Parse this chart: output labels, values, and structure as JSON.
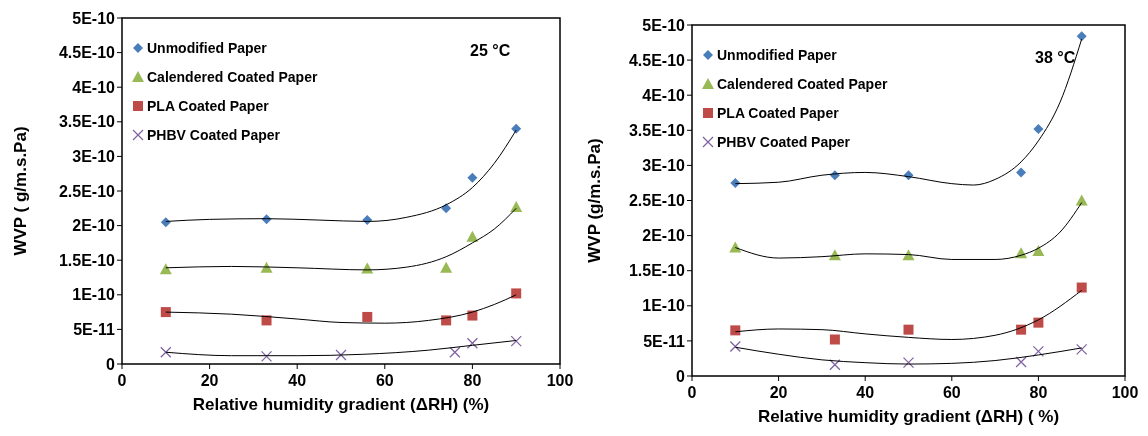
{
  "chart_data": [
    {
      "type": "scatter",
      "xlabel": "Relative humidity gradient (ΔRH) (%)",
      "ylabel": "WVP ( g/m.s.Pa)",
      "annotations": [
        "25 °C"
      ],
      "xlim": [
        0,
        100
      ],
      "xticks": [
        0,
        20,
        40,
        60,
        80,
        100
      ],
      "ylim": [
        0,
        5e-10
      ],
      "yticks": [
        0,
        {
          "value": 5e-11,
          "label": "5E-11"
        },
        {
          "value": 1e-10,
          "label": "1E-10"
        },
        {
          "value": 1.5e-10,
          "label": "1.5E-10"
        },
        {
          "value": 2e-10,
          "label": "2E-10"
        },
        {
          "value": 2.5e-10,
          "label": "2.5E-10"
        },
        {
          "value": 3e-10,
          "label": "3E-10"
        },
        {
          "value": 3.5e-10,
          "label": "3.5E-10"
        },
        {
          "value": 4e-10,
          "label": "4E-10"
        },
        {
          "value": 4.5e-10,
          "label": "4.5E-10"
        },
        {
          "value": 5e-10,
          "label": "5E-10"
        }
      ],
      "grid": false,
      "legend": "top left",
      "series": [
        {
          "name": "Unmodified Paper",
          "type": "scatter",
          "marker": "diamond",
          "color": "#4a7ebb",
          "x": [
            10,
            33,
            56,
            74,
            80,
            90
          ],
          "values": [
            2.05e-10,
            2.09e-10,
            2.08e-10,
            2.25e-10,
            2.69e-10,
            3.4e-10
          ]
        },
        {
          "name": "Calendered Coated Paper",
          "type": "scatter",
          "marker": "triangle",
          "color": "#98b954",
          "x": [
            10,
            33,
            56,
            74,
            80,
            90
          ],
          "values": [
            1.37e-10,
            1.39e-10,
            1.38e-10,
            1.39e-10,
            1.84e-10,
            2.27e-10
          ]
        },
        {
          "name": "PLA Coated Paper",
          "type": "scatter",
          "marker": "square",
          "color": "#be4b48",
          "x": [
            10,
            33,
            56,
            74,
            80,
            90
          ],
          "values": [
            7.5e-11,
            6.3e-11,
            6.8e-11,
            6.3e-11,
            7e-11,
            1.02e-10
          ]
        },
        {
          "name": "PHBV Coated Paper",
          "type": "scatter",
          "marker": "cross",
          "color": "#7d60a0",
          "x": [
            10,
            33,
            50,
            76,
            80,
            90
          ],
          "values": [
            1.7e-11,
            1.1e-11,
            1.3e-11,
            1.7e-11,
            3e-11,
            3.3e-11
          ]
        },
        {
          "type": "line",
          "marker": "none",
          "color": "#000000",
          "x": [
            10,
            20,
            33,
            45,
            56,
            65,
            74,
            80,
            85,
            90
          ],
          "values": [
            2.06e-10,
            2.09e-10,
            2.1e-10,
            2.08e-10,
            2.06e-10,
            2.12e-10,
            2.3e-10,
            2.55e-10,
            2.9e-10,
            3.38e-10
          ]
        },
        {
          "type": "line",
          "marker": "none",
          "color": "#000000",
          "x": [
            10,
            25,
            40,
            56,
            65,
            74,
            80,
            85,
            90
          ],
          "values": [
            1.39e-10,
            1.41e-10,
            1.39e-10,
            1.36e-10,
            1.4e-10,
            1.55e-10,
            1.75e-10,
            1.95e-10,
            2.25e-10
          ]
        },
        {
          "type": "line",
          "marker": "none",
          "color": "#000000",
          "x": [
            10,
            25,
            40,
            50,
            60,
            70,
            80,
            85,
            90
          ],
          "values": [
            7.5e-11,
            7.2e-11,
            6.5e-11,
            6e-11,
            5.9e-11,
            6.3e-11,
            7.5e-11,
            8.6e-11,
            1e-10
          ]
        },
        {
          "type": "line",
          "marker": "none",
          "color": "#000000",
          "x": [
            10,
            25,
            40,
            55,
            70,
            80,
            90
          ],
          "values": [
            1.7e-11,
            1.2e-11,
            1.2e-11,
            1.4e-11,
            2e-11,
            2.7e-11,
            3.4e-11
          ]
        }
      ]
    },
    {
      "type": "scatter",
      "xlabel": "Relative humidity gradient (ΔRH) ( %)",
      "ylabel": "WVP  (g/m.s.Pa)",
      "annotations": [
        "38 °C"
      ],
      "xlim": [
        0,
        100
      ],
      "xticks": [
        0,
        20,
        40,
        60,
        80,
        100
      ],
      "ylim": [
        0,
        5e-10
      ],
      "yticks": [
        0,
        {
          "value": 5e-11,
          "label": "5E-11"
        },
        {
          "value": 1e-10,
          "label": "1E-10"
        },
        {
          "value": 1.5e-10,
          "label": "1.5E-10"
        },
        {
          "value": 2e-10,
          "label": "2E-10"
        },
        {
          "value": 2.5e-10,
          "label": "2.5E-10"
        },
        {
          "value": 3e-10,
          "label": "3E-10"
        },
        {
          "value": 3.5e-10,
          "label": "3.5E-10"
        },
        {
          "value": 4e-10,
          "label": "4E-10"
        },
        {
          "value": 4.5e-10,
          "label": "4.5E-10"
        },
        {
          "value": 5e-10,
          "label": "5E-10"
        }
      ],
      "grid": false,
      "legend": "top left",
      "series": [
        {
          "name": "Unmodified Paper",
          "type": "scatter",
          "marker": "diamond",
          "color": "#4a7ebb",
          "x": [
            10,
            33,
            50,
            76,
            80,
            90
          ],
          "values": [
            2.75e-10,
            2.86e-10,
            2.86e-10,
            2.9e-10,
            3.52e-10,
            4.84e-10
          ]
        },
        {
          "name": "Calendered Coated Paper",
          "type": "scatter",
          "marker": "triangle",
          "color": "#98b954",
          "x": [
            10,
            33,
            50,
            76,
            80,
            90
          ],
          "values": [
            1.83e-10,
            1.72e-10,
            1.72e-10,
            1.75e-10,
            1.78e-10,
            2.5e-10
          ]
        },
        {
          "name": "PLA Coated Paper",
          "type": "scatter",
          "marker": "square",
          "color": "#be4b48",
          "x": [
            10,
            33,
            50,
            76,
            80,
            90
          ],
          "values": [
            6.5e-11,
            5.2e-11,
            6.6e-11,
            6.6e-11,
            7.6e-11,
            1.26e-10
          ]
        },
        {
          "name": "PHBV Coated Paper",
          "type": "scatter",
          "marker": "cross",
          "color": "#7d60a0",
          "x": [
            10,
            33,
            50,
            76,
            80,
            90
          ],
          "values": [
            4.2e-11,
            1.6e-11,
            1.9e-11,
            2e-11,
            3.5e-11,
            3.8e-11
          ]
        },
        {
          "type": "line",
          "marker": "none",
          "color": "#000000",
          "x": [
            10,
            20,
            30,
            40,
            50,
            60,
            65,
            70,
            76,
            80,
            85,
            90
          ],
          "values": [
            2.74e-10,
            2.76e-10,
            2.86e-10,
            2.9e-10,
            2.84e-10,
            2.74e-10,
            2.72e-10,
            2.8e-10,
            3.05e-10,
            3.35e-10,
            3.9e-10,
            4.8e-10
          ]
        },
        {
          "type": "line",
          "marker": "none",
          "color": "#000000",
          "x": [
            10,
            20,
            30,
            40,
            50,
            60,
            70,
            76,
            80,
            85,
            90
          ],
          "values": [
            1.83e-10,
            1.68e-10,
            1.7e-10,
            1.74e-10,
            1.73e-10,
            1.66e-10,
            1.66e-10,
            1.72e-10,
            1.82e-10,
            2.05e-10,
            2.47e-10
          ]
        },
        {
          "type": "line",
          "marker": "none",
          "color": "#000000",
          "x": [
            10,
            20,
            30,
            40,
            50,
            60,
            70,
            80,
            90
          ],
          "values": [
            6.3e-11,
            6.7e-11,
            6.6e-11,
            6e-11,
            5.5e-11,
            5.2e-11,
            5.8e-11,
            8e-11,
            1.22e-10
          ]
        },
        {
          "type": "line",
          "marker": "none",
          "color": "#000000",
          "x": [
            10,
            20,
            30,
            40,
            50,
            60,
            70,
            80,
            90
          ],
          "values": [
            4.1e-11,
            3.1e-11,
            2.3e-11,
            1.9e-11,
            1.7e-11,
            1.8e-11,
            2.2e-11,
            3e-11,
            4e-11
          ]
        }
      ]
    }
  ]
}
